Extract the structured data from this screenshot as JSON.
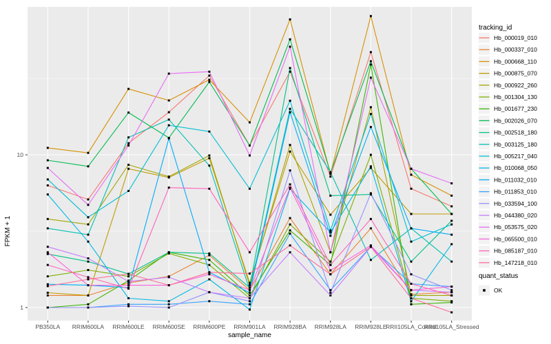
{
  "chart_data": {
    "type": "line",
    "title": "",
    "xlabel": "sample_name",
    "ylabel": "FPKM + 1",
    "y_scale": "log10",
    "y_ticks": [
      1,
      10
    ],
    "y_minor_ticks": [
      3.1623,
      31.623
    ],
    "ylim": [
      0.83,
      91
    ],
    "grid": true,
    "panel_bg": "#EBEBEB",
    "grid_color": "#FFFFFF",
    "tick_label_color": "#4D4D4D",
    "marker_color": "#000000",
    "legend_position": "right",
    "legend_title": "tracking_id",
    "legend_key_bg": "#F2F2F2",
    "quant_legend": {
      "title": "quant_status",
      "items": [
        {
          "label": "OK",
          "marker": "black-square"
        }
      ]
    },
    "categories": [
      "PB350LA",
      "RRIM600LA",
      "RRIM600LE",
      "RRIM600SE",
      "RRIM600PE",
      "RRIM901LA",
      "RRIM928BA",
      "RRIM928LA",
      "RRIM928LE",
      "RRII105LA_Control",
      "RRII105LA_Stressed"
    ],
    "series": [
      {
        "name": "Hb_000019_010",
        "color": "#F8766D",
        "values": [
          6.3,
          5.1,
          11.9,
          19,
          33,
          11.5,
          35,
          7.2,
          47,
          6.0,
          4.6
        ]
      },
      {
        "name": "Hb_000337_010",
        "color": "#EA8331",
        "values": [
          1.2,
          1.2,
          1.45,
          1.6,
          2.2,
          1.3,
          3.85,
          1.65,
          3.3,
          1.22,
          1.26
        ]
      },
      {
        "name": "Hb_000668_110",
        "color": "#D89000",
        "values": [
          11.1,
          10.3,
          27,
          22.7,
          31,
          16.3,
          77,
          7.5,
          81,
          7.4,
          5.4
        ]
      },
      {
        "name": "Hb_000875_070",
        "color": "#C09B00",
        "values": [
          1.25,
          1.2,
          8.1,
          7.1,
          9.5,
          1.45,
          10.5,
          4.05,
          8.2,
          4.1,
          4.1
        ]
      },
      {
        "name": "Hb_000922_260",
        "color": "#A3A500",
        "values": [
          3.8,
          3.5,
          8.6,
          7.2,
          9.9,
          1.4,
          11.6,
          2.3,
          20.5,
          1.2,
          1.2
        ]
      },
      {
        "name": "Hb_001304_130",
        "color": "#7CAE00",
        "values": [
          1.6,
          1.76,
          1.6,
          2.26,
          1.9,
          1.15,
          3.5,
          2.0,
          10.0,
          1.15,
          1.1
        ]
      },
      {
        "name": "Hb_001677_230",
        "color": "#39B600",
        "values": [
          1.0,
          1.05,
          1.5,
          2.3,
          2.05,
          1.2,
          3.2,
          1.9,
          39,
          1.05,
          1.08
        ]
      },
      {
        "name": "Hb_002026_070",
        "color": "#00BB4E",
        "values": [
          9.2,
          8.4,
          18.9,
          12.9,
          30,
          11.5,
          57,
          7.6,
          41,
          8.1,
          4.1
        ]
      },
      {
        "name": "Hb_002518_180",
        "color": "#00C087",
        "values": [
          2.24,
          2.0,
          1.66,
          2.3,
          2.26,
          1.35,
          37,
          5.4,
          5.5,
          2.0,
          3.7
        ]
      },
      {
        "name": "Hb_003125_180",
        "color": "#00C0B2",
        "values": [
          3.3,
          3.0,
          13.0,
          17,
          8.5,
          1.3,
          20,
          7.7,
          2.05,
          3.3,
          2.0
        ]
      },
      {
        "name": "Hb_005217_040",
        "color": "#00BFD4",
        "values": [
          6.9,
          3.9,
          5.8,
          15.6,
          14.2,
          6.0,
          22.6,
          3.2,
          18.5,
          2.7,
          3.5
        ]
      },
      {
        "name": "Hb_010068_050",
        "color": "#00B8E7",
        "values": [
          5.5,
          2.7,
          1.15,
          1.1,
          1.53,
          0.97,
          6.0,
          3.1,
          8.4,
          1.1,
          2.6
        ]
      },
      {
        "name": "Hb_011032_010",
        "color": "#00ACFC",
        "values": [
          1.42,
          1.4,
          1.35,
          12.8,
          1.7,
          1.25,
          19,
          2.95,
          15.2,
          3.3,
          3.0
        ]
      },
      {
        "name": "Hb_011853_010",
        "color": "#35A2FF",
        "values": [
          1.0,
          1.0,
          1.05,
          1.05,
          1.1,
          1.05,
          3.05,
          1.3,
          2.5,
          1.43,
          1.37
        ]
      },
      {
        "name": "Hb_033594_100",
        "color": "#9590FF",
        "values": [
          1.0,
          1.0,
          1.02,
          1.0,
          1.26,
          1.1,
          7.9,
          1.25,
          5.6,
          1.65,
          1.3
        ]
      },
      {
        "name": "Hb_044380_020",
        "color": "#C77CFF",
        "values": [
          2.5,
          2.1,
          1.48,
          1.58,
          1.26,
          1.15,
          2.3,
          1.2,
          2.5,
          1.3,
          1.26
        ]
      },
      {
        "name": "Hb_053575_020",
        "color": "#E76BF3",
        "values": [
          8.2,
          4.7,
          11.5,
          34,
          35,
          9.9,
          51,
          2.3,
          32,
          8.1,
          6.5
        ]
      },
      {
        "name": "Hb_065500_010",
        "color": "#FA62DB",
        "values": [
          2.3,
          1.4,
          1.4,
          1.4,
          1.65,
          1.3,
          6.1,
          1.75,
          2.55,
          1.3,
          1.37
        ]
      },
      {
        "name": "Hb_085187_010",
        "color": "#FF62BC",
        "values": [
          1.9,
          1.58,
          1.33,
          6.1,
          6.0,
          2.3,
          6.4,
          1.9,
          3.8,
          1.43,
          1.2
        ]
      },
      {
        "name": "Hb_147218_010",
        "color": "#FF6A98",
        "values": [
          1.38,
          1.53,
          1.66,
          1.4,
          1.7,
          1.67,
          2.55,
          1.65,
          2.5,
          1.15,
          0.93
        ]
      }
    ]
  }
}
